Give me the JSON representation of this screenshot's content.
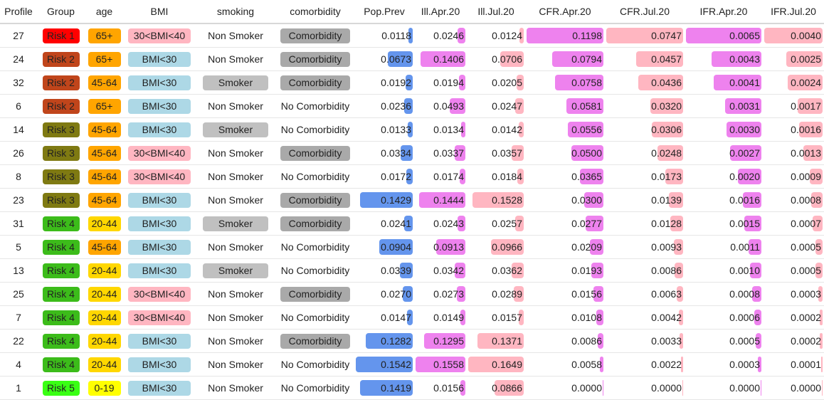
{
  "colors": {
    "risk": {
      "Risk 1": "#ff0000",
      "Risk 2": "#c0451b",
      "Risk 3": "#7f7a12",
      "Risk 4": "#3cbc1a",
      "Risk 5": "#39ff14"
    },
    "age": {
      "65+": "#ffa500",
      "45-64": "#ffa500",
      "20-44": "#ffd700",
      "0-19": "#ffff00"
    },
    "bmi": {
      "30<BMI<40": "#ffb6c1",
      "BMI<30": "#add8e6"
    },
    "smoker": "#c0c0c0",
    "comorbidity": "#a9a9a9",
    "pop_prev": "#6495ed",
    "ill_apr": "#ee82ee",
    "ill_jul": "#ffb6c1",
    "cfr_apr": "#ee82ee",
    "cfr_jul": "#ffb6c1",
    "ifr_apr": "#ee82ee",
    "ifr_jul": "#ffb6c1"
  },
  "chart_data": {
    "type": "table",
    "columns": [
      "Profile",
      "Group",
      "age",
      "BMI",
      "smoking",
      "comorbidity",
      "Pop.Prev",
      "Ill.Apr.20",
      "Ill.Jul.20",
      "CFR.Apr.20",
      "CFR.Jul.20",
      "IFR.Apr.20",
      "IFR.Jul.20"
    ],
    "rows": [
      {
        "profile": "27",
        "group": "Risk 1",
        "age": "65+",
        "bmi": "30<BMI<40",
        "smoking": "Non Smoker",
        "comorbidity": "Comorbidity",
        "pop_prev": "0.0118",
        "ill_apr": "0.0246",
        "ill_jul": "0.0124",
        "cfr_apr": "0.1198",
        "cfr_jul": "0.0747",
        "ifr_apr": "0.0065",
        "ifr_jul": "0.0040"
      },
      {
        "profile": "24",
        "group": "Risk 2",
        "age": "65+",
        "bmi": "BMI<30",
        "smoking": "Non Smoker",
        "comorbidity": "Comorbidity",
        "pop_prev": "0.0673",
        "ill_apr": "0.1406",
        "ill_jul": "0.0706",
        "cfr_apr": "0.0794",
        "cfr_jul": "0.0457",
        "ifr_apr": "0.0043",
        "ifr_jul": "0.0025"
      },
      {
        "profile": "32",
        "group": "Risk 2",
        "age": "45-64",
        "bmi": "BMI<30",
        "smoking": "Smoker",
        "comorbidity": "Comorbidity",
        "pop_prev": "0.0192",
        "ill_apr": "0.0194",
        "ill_jul": "0.0205",
        "cfr_apr": "0.0758",
        "cfr_jul": "0.0436",
        "ifr_apr": "0.0041",
        "ifr_jul": "0.0024"
      },
      {
        "profile": "6",
        "group": "Risk 2",
        "age": "65+",
        "bmi": "BMI<30",
        "smoking": "Non Smoker",
        "comorbidity": "No Comorbidity",
        "pop_prev": "0.0236",
        "ill_apr": "0.0493",
        "ill_jul": "0.0247",
        "cfr_apr": "0.0581",
        "cfr_jul": "0.0320",
        "ifr_apr": "0.0031",
        "ifr_jul": "0.0017"
      },
      {
        "profile": "14",
        "group": "Risk 3",
        "age": "45-64",
        "bmi": "BMI<30",
        "smoking": "Smoker",
        "comorbidity": "No Comorbidity",
        "pop_prev": "0.0133",
        "ill_apr": "0.0134",
        "ill_jul": "0.0142",
        "cfr_apr": "0.0556",
        "cfr_jul": "0.0306",
        "ifr_apr": "0.0030",
        "ifr_jul": "0.0016"
      },
      {
        "profile": "26",
        "group": "Risk 3",
        "age": "45-64",
        "bmi": "30<BMI<40",
        "smoking": "Non Smoker",
        "comorbidity": "Comorbidity",
        "pop_prev": "0.0334",
        "ill_apr": "0.0337",
        "ill_jul": "0.0357",
        "cfr_apr": "0.0500",
        "cfr_jul": "0.0248",
        "ifr_apr": "0.0027",
        "ifr_jul": "0.0013"
      },
      {
        "profile": "8",
        "group": "Risk 3",
        "age": "45-64",
        "bmi": "30<BMI<40",
        "smoking": "Non Smoker",
        "comorbidity": "No Comorbidity",
        "pop_prev": "0.0172",
        "ill_apr": "0.0174",
        "ill_jul": "0.0184",
        "cfr_apr": "0.0365",
        "cfr_jul": "0.0173",
        "ifr_apr": "0.0020",
        "ifr_jul": "0.0009"
      },
      {
        "profile": "23",
        "group": "Risk 3",
        "age": "45-64",
        "bmi": "BMI<30",
        "smoking": "Non Smoker",
        "comorbidity": "Comorbidity",
        "pop_prev": "0.1429",
        "ill_apr": "0.1444",
        "ill_jul": "0.1528",
        "cfr_apr": "0.0300",
        "cfr_jul": "0.0139",
        "ifr_apr": "0.0016",
        "ifr_jul": "0.0008"
      },
      {
        "profile": "31",
        "group": "Risk 4",
        "age": "20-44",
        "bmi": "BMI<30",
        "smoking": "Smoker",
        "comorbidity": "Comorbidity",
        "pop_prev": "0.0241",
        "ill_apr": "0.0243",
        "ill_jul": "0.0257",
        "cfr_apr": "0.0277",
        "cfr_jul": "0.0128",
        "ifr_apr": "0.0015",
        "ifr_jul": "0.0007"
      },
      {
        "profile": "5",
        "group": "Risk 4",
        "age": "45-64",
        "bmi": "BMI<30",
        "smoking": "Non Smoker",
        "comorbidity": "No Comorbidity",
        "pop_prev": "0.0904",
        "ill_apr": "0.0913",
        "ill_jul": "0.0966",
        "cfr_apr": "0.0209",
        "cfr_jul": "0.0093",
        "ifr_apr": "0.0011",
        "ifr_jul": "0.0005"
      },
      {
        "profile": "13",
        "group": "Risk 4",
        "age": "20-44",
        "bmi": "BMI<30",
        "smoking": "Smoker",
        "comorbidity": "No Comorbidity",
        "pop_prev": "0.0339",
        "ill_apr": "0.0342",
        "ill_jul": "0.0362",
        "cfr_apr": "0.0193",
        "cfr_jul": "0.0086",
        "ifr_apr": "0.0010",
        "ifr_jul": "0.0005"
      },
      {
        "profile": "25",
        "group": "Risk 4",
        "age": "20-44",
        "bmi": "30<BMI<40",
        "smoking": "Non Smoker",
        "comorbidity": "Comorbidity",
        "pop_prev": "0.0270",
        "ill_apr": "0.0273",
        "ill_jul": "0.0289",
        "cfr_apr": "0.0156",
        "cfr_jul": "0.0063",
        "ifr_apr": "0.0008",
        "ifr_jul": "0.0003"
      },
      {
        "profile": "7",
        "group": "Risk 4",
        "age": "20-44",
        "bmi": "30<BMI<40",
        "smoking": "Non Smoker",
        "comorbidity": "No Comorbidity",
        "pop_prev": "0.0147",
        "ill_apr": "0.0149",
        "ill_jul": "0.0157",
        "cfr_apr": "0.0108",
        "cfr_jul": "0.0042",
        "ifr_apr": "0.0006",
        "ifr_jul": "0.0002"
      },
      {
        "profile": "22",
        "group": "Risk 4",
        "age": "20-44",
        "bmi": "BMI<30",
        "smoking": "Non Smoker",
        "comorbidity": "Comorbidity",
        "pop_prev": "0.1282",
        "ill_apr": "0.1295",
        "ill_jul": "0.1371",
        "cfr_apr": "0.0086",
        "cfr_jul": "0.0033",
        "ifr_apr": "0.0005",
        "ifr_jul": "0.0002"
      },
      {
        "profile": "4",
        "group": "Risk 4",
        "age": "20-44",
        "bmi": "BMI<30",
        "smoking": "Non Smoker",
        "comorbidity": "No Comorbidity",
        "pop_prev": "0.1542",
        "ill_apr": "0.1558",
        "ill_jul": "0.1649",
        "cfr_apr": "0.0058",
        "cfr_jul": "0.0022",
        "ifr_apr": "0.0003",
        "ifr_jul": "0.0001"
      },
      {
        "profile": "1",
        "group": "Risk 5",
        "age": "0-19",
        "bmi": "BMI<30",
        "smoking": "Non Smoker",
        "comorbidity": "No Comorbidity",
        "pop_prev": "0.1419",
        "ill_apr": "0.0156",
        "ill_jul": "0.0866",
        "cfr_apr": "0.0000",
        "cfr_jul": "0.0000",
        "ifr_apr": "0.0000",
        "ifr_jul": "0.0000"
      }
    ]
  }
}
